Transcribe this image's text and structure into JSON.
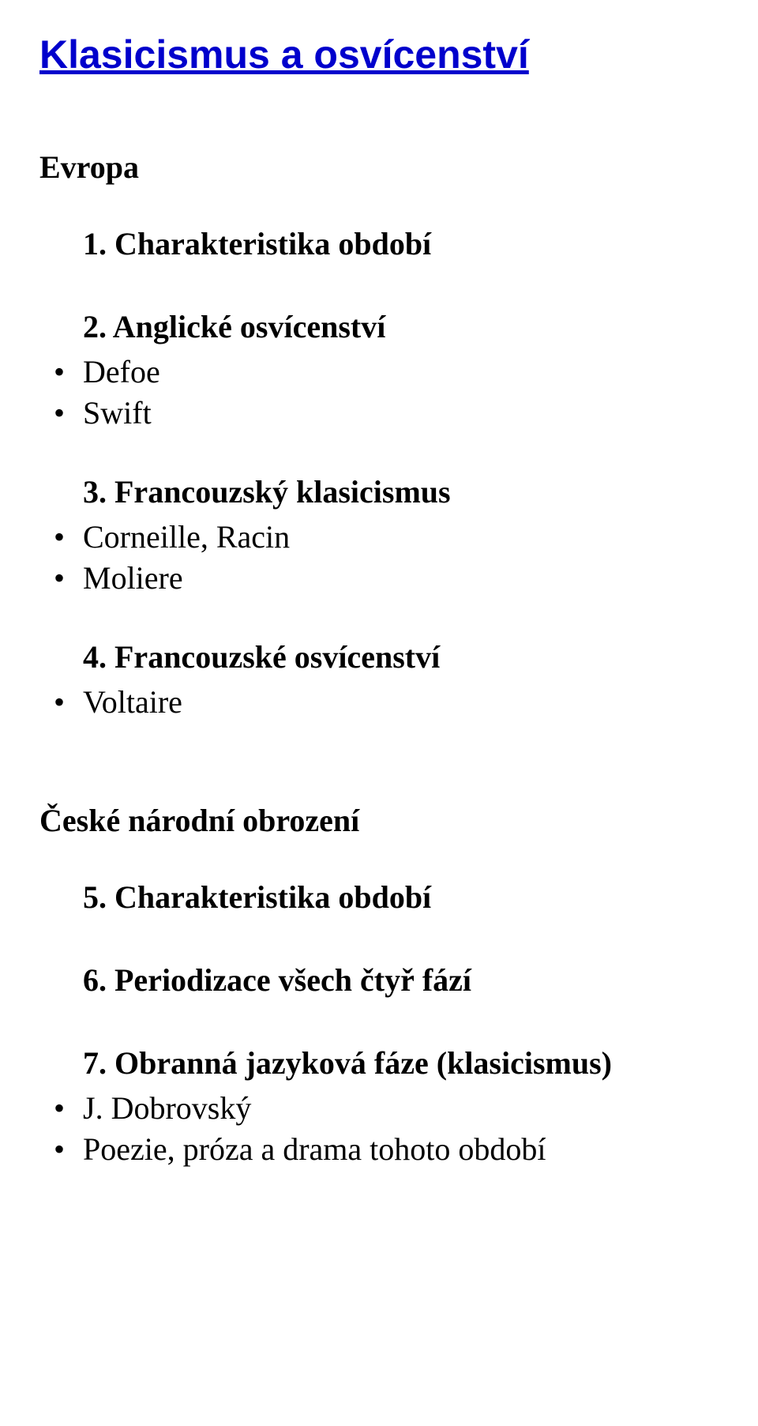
{
  "main_title": "Klasicismus a osvícenství",
  "section1": {
    "heading": "Evropa",
    "items": [
      {
        "number": "1.",
        "title": "Charakteristika období",
        "bullets": []
      },
      {
        "number": "2.",
        "title": "Anglické osvícenství",
        "bullets": [
          "Defoe",
          "Swift"
        ]
      },
      {
        "number": "3.",
        "title": "Francouzský klasicismus",
        "bullets": [
          "Corneille, Racin",
          "Moliere"
        ]
      },
      {
        "number": "4.",
        "title": "Francouzské osvícenství",
        "bullets": [
          "Voltaire"
        ]
      }
    ]
  },
  "section2": {
    "heading": "České národní obrození",
    "items": [
      {
        "number": "5.",
        "title": "Charakteristika období",
        "bullets": []
      },
      {
        "number": "6.",
        "title": "Periodizace všech čtyř fází",
        "bullets": []
      },
      {
        "number": "7.",
        "title": "Obranná jazyková fáze (klasicismus)",
        "bullets": [
          "J. Dobrovský",
          "Poezie, próza a drama tohoto období"
        ]
      }
    ]
  },
  "colors": {
    "title": "#0000cc",
    "text": "#000000",
    "background": "#ffffff"
  },
  "fonts": {
    "title_family": "Comic Sans MS",
    "body_family": "Times New Roman",
    "title_size": 50,
    "body_size": 40
  }
}
